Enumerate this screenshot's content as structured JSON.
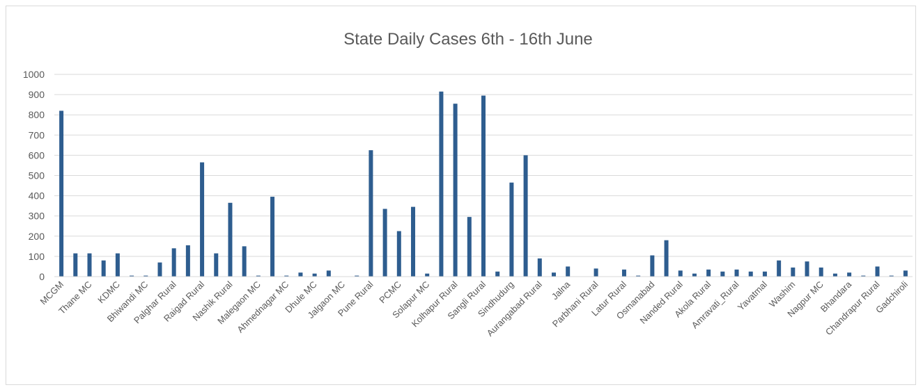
{
  "chart_data": {
    "type": "bar",
    "title": "State Daily Cases 6th - 16th June",
    "xlabel": "",
    "ylabel": "",
    "ylim": [
      0,
      1000
    ],
    "yticks": [
      0,
      100,
      200,
      300,
      400,
      500,
      600,
      700,
      800,
      900,
      1000
    ],
    "grid": true,
    "legend": "none",
    "bar_color": "#2e5d8f",
    "categories": [
      "MCGM",
      "",
      "Thane MC",
      "",
      "KDMC",
      "",
      "Bhiwandi MC",
      "",
      "Palghar Rural",
      "",
      "Raigad Rural",
      "",
      "Nashik Rural",
      "",
      "Malegaon MC",
      "",
      "Ahmednagar MC",
      "",
      "Dhule MC",
      "",
      "Jalgaon MC",
      "",
      "Pune Rural",
      "",
      "PCMC",
      "",
      "Solapur MC",
      "",
      "Kolhapur Rural",
      "",
      "Sangli Rural",
      "",
      "Sindhudurg",
      "",
      "Aurangabad Rural",
      "",
      "Jalna",
      "",
      "Parbhani Rural",
      "",
      "Latur Rural",
      "",
      "Osmanabad",
      "",
      "Nanded Rural",
      "",
      "Akola Rural",
      "",
      "Amravati_Rural",
      "",
      "Yavatmal",
      "",
      "Washim",
      "",
      "Nagpur MC",
      "",
      "Bhandara",
      "",
      "Chandrapur Rural",
      "",
      "Gadchiroli"
    ],
    "values": [
      820,
      115,
      115,
      80,
      115,
      5,
      5,
      70,
      140,
      155,
      565,
      115,
      365,
      150,
      5,
      395,
      5,
      20,
      15,
      30,
      0,
      5,
      625,
      335,
      225,
      345,
      15,
      915,
      855,
      295,
      895,
      25,
      465,
      600,
      90,
      20,
      50,
      0,
      40,
      0,
      35,
      5,
      105,
      180,
      30,
      15,
      35,
      25,
      35,
      25,
      25,
      80,
      45,
      75,
      45,
      15,
      20,
      5,
      50,
      5,
      30
    ]
  }
}
